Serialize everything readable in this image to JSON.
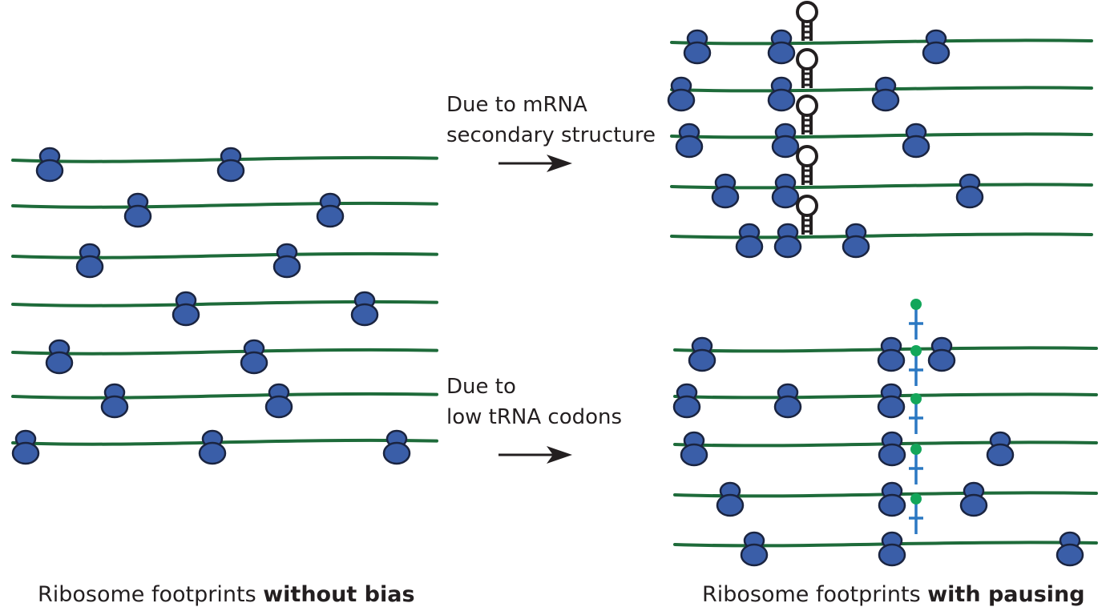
{
  "labels": {
    "secondary_structure_line1": "Due to mRNA",
    "secondary_structure_line2": "secondary structure",
    "low_trna_line1": "Due to",
    "low_trna_line2": "low tRNA codons"
  },
  "captions": {
    "left_normal": "Ribosome footprints ",
    "left_bold": "without bias",
    "right_normal": "Ribosome footprints ",
    "right_bold": "with pausing"
  },
  "colors": {
    "mrna": "#1e6b3a",
    "ribosome_fill": "#3a5ea8",
    "ribosome_stroke": "#1a2440",
    "hairpin": "#231f20",
    "trna_stem": "#2b78c2",
    "trna_head": "#13a65a",
    "arrow": "#231f20",
    "text": "#231f20"
  }
}
